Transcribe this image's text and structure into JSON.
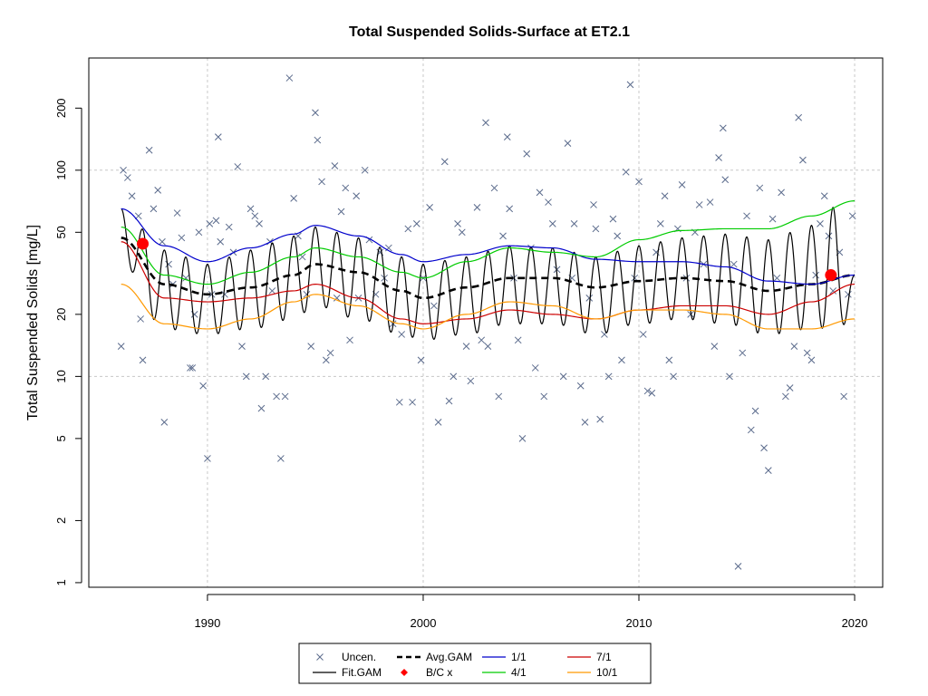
{
  "chart_data": {
    "type": "line",
    "title": "Total Suspended Solids-Surface at ET2.1",
    "xlabel": "",
    "ylabel": "Total Suspended Solids [mg/L]",
    "y_scale": "log",
    "xlim": [
      1984.5,
      2021.3
    ],
    "ylim": [
      0.95,
      350
    ],
    "x_ticks": [
      1990,
      2000,
      2010,
      2020
    ],
    "y_ticks": [
      1,
      2,
      5,
      10,
      20,
      50,
      100,
      200
    ],
    "grid": true,
    "legend_position": "bottom",
    "colors": {
      "points": "#5b6b8c",
      "fit": "#000000",
      "avg": "#000000",
      "bc": "#ff0000",
      "p1_1": "#0000cc",
      "p4_1": "#00cc00",
      "p7_1": "#cc0000",
      "p10_1": "#ff9900",
      "grid": "#c8c8c8"
    },
    "legend": [
      {
        "key": "points",
        "label": "Uncen."
      },
      {
        "key": "avg",
        "label": "Avg.GAM"
      },
      {
        "key": "p1_1",
        "label": "1/1"
      },
      {
        "key": "p7_1",
        "label": "7/1"
      },
      {
        "key": "fit",
        "label": "Fit.GAM"
      },
      {
        "key": "bc",
        "label": "B/C x"
      },
      {
        "key": "p4_1",
        "label": "4/1"
      },
      {
        "key": "p10_1",
        "label": "10/1"
      }
    ],
    "series": [
      {
        "name": "Avg.GAM",
        "x": [
          1986,
          1988,
          1990,
          1992,
          1994,
          1995,
          1997,
          1999,
          2000,
          2002,
          2004,
          2006,
          2008,
          2010,
          2012,
          2014,
          2016,
          2018,
          2020
        ],
        "y": [
          47,
          28,
          25,
          27,
          31,
          35,
          32,
          26,
          24,
          27,
          30,
          30,
          27,
          29,
          30,
          29,
          26,
          28,
          31
        ]
      },
      {
        "name": "1/1",
        "x": [
          1986,
          1988,
          1990,
          1992,
          1994,
          1995,
          1997,
          1999,
          2000,
          2002,
          2004,
          2006,
          2008,
          2010,
          2012,
          2014,
          2016,
          2018,
          2020
        ],
        "y": [
          65,
          43,
          36,
          42,
          49,
          54,
          48,
          39,
          36,
          39,
          43,
          42,
          37,
          36,
          36,
          34,
          29,
          28,
          31
        ]
      },
      {
        "name": "4/1",
        "x": [
          1986,
          1988,
          1990,
          1992,
          1994,
          1995,
          1997,
          1999,
          2000,
          2002,
          2004,
          2006,
          2008,
          2010,
          2012,
          2014,
          2016,
          2018,
          2020
        ],
        "y": [
          53,
          31,
          28,
          32,
          38,
          42,
          38,
          32,
          30,
          36,
          42,
          40,
          38,
          46,
          51,
          52,
          52,
          60,
          71
        ]
      },
      {
        "name": "7/1",
        "x": [
          1986,
          1988,
          1990,
          1992,
          1994,
          1995,
          1997,
          1999,
          2000,
          2002,
          2004,
          2006,
          2008,
          2010,
          2012,
          2014,
          2016,
          2018,
          2020
        ],
        "y": [
          45,
          24,
          23,
          24,
          26,
          28,
          24,
          19,
          18,
          19,
          21,
          20,
          19,
          21,
          22,
          22,
          20,
          23,
          28
        ]
      },
      {
        "name": "10/1",
        "x": [
          1986,
          1988,
          1990,
          1992,
          1994,
          1995,
          1997,
          1999,
          2000,
          2002,
          2004,
          2006,
          2008,
          2010,
          2012,
          2014,
          2016,
          2018,
          2020
        ],
        "y": [
          28,
          18,
          17,
          19,
          23,
          25,
          22,
          18,
          17,
          20,
          23,
          22,
          19,
          21,
          21,
          20,
          17,
          17,
          19
        ]
      }
    ],
    "fit_gam": {
      "name": "Fit.GAM",
      "x_start": 1986,
      "x_end": 2020,
      "period_years": 1,
      "upper_x": [
        1986,
        1988,
        1990,
        1992,
        1994,
        1995,
        1997,
        1999,
        2000,
        2002,
        2004,
        2006,
        2008,
        2010,
        2012,
        2014,
        2016,
        2018,
        2019,
        2020
      ],
      "upper_y": [
        65,
        41,
        35,
        41,
        48,
        53,
        47,
        38,
        35,
        38,
        43,
        42,
        38,
        43,
        47,
        49,
        46,
        54,
        66,
        31
      ],
      "lower_x": [
        1986,
        1988,
        1990,
        1992,
        1994,
        1995,
        1997,
        1999,
        2000,
        2002,
        2004,
        2006,
        2008,
        2010,
        2012,
        2014,
        2016,
        2018,
        2020
      ],
      "lower_y": [
        36,
        17,
        16,
        17,
        19,
        22,
        19,
        16,
        15,
        16,
        18,
        18,
        16,
        18,
        19,
        18,
        16,
        17,
        18
      ]
    },
    "bc_points": [
      {
        "x": 1987.0,
        "y": 44
      },
      {
        "x": 2018.9,
        "y": 31
      }
    ],
    "uncen_points": [
      [
        1986.0,
        14
      ],
      [
        1986.1,
        100
      ],
      [
        1986.3,
        92
      ],
      [
        1986.5,
        75
      ],
      [
        1986.8,
        60
      ],
      [
        1986.9,
        19
      ],
      [
        1987.0,
        12
      ],
      [
        1987.3,
        125
      ],
      [
        1987.5,
        65
      ],
      [
        1987.7,
        80
      ],
      [
        1987.9,
        45
      ],
      [
        1988.0,
        6
      ],
      [
        1988.2,
        35
      ],
      [
        1988.4,
        28
      ],
      [
        1988.6,
        62
      ],
      [
        1988.8,
        47
      ],
      [
        1989.0,
        30
      ],
      [
        1989.2,
        11
      ],
      [
        1989.3,
        11
      ],
      [
        1989.4,
        20
      ],
      [
        1989.6,
        50
      ],
      [
        1989.8,
        9
      ],
      [
        1990.0,
        4
      ],
      [
        1990.1,
        55
      ],
      [
        1990.2,
        25
      ],
      [
        1990.4,
        57
      ],
      [
        1990.5,
        145
      ],
      [
        1990.6,
        45
      ],
      [
        1990.8,
        25
      ],
      [
        1991.0,
        53
      ],
      [
        1991.2,
        40
      ],
      [
        1991.4,
        104
      ],
      [
        1991.6,
        14
      ],
      [
        1991.8,
        10
      ],
      [
        1992.0,
        65
      ],
      [
        1992.2,
        60
      ],
      [
        1992.4,
        55
      ],
      [
        1992.5,
        7
      ],
      [
        1992.7,
        10
      ],
      [
        1992.9,
        45
      ],
      [
        1993.0,
        26
      ],
      [
        1993.2,
        8
      ],
      [
        1993.4,
        4
      ],
      [
        1993.6,
        8
      ],
      [
        1993.8,
        280
      ],
      [
        1994.0,
        73
      ],
      [
        1994.2,
        48
      ],
      [
        1994.4,
        38
      ],
      [
        1994.6,
        25
      ],
      [
        1994.8,
        14
      ],
      [
        1995.0,
        190
      ],
      [
        1995.1,
        140
      ],
      [
        1995.3,
        88
      ],
      [
        1995.5,
        12
      ],
      [
        1995.7,
        13
      ],
      [
        1995.9,
        105
      ],
      [
        1996.0,
        24
      ],
      [
        1996.2,
        63
      ],
      [
        1996.4,
        82
      ],
      [
        1996.6,
        15
      ],
      [
        1996.9,
        75
      ],
      [
        1997.0,
        24
      ],
      [
        1997.3,
        100
      ],
      [
        1997.5,
        46
      ],
      [
        1997.8,
        25
      ],
      [
        1998.0,
        40
      ],
      [
        1998.2,
        30
      ],
      [
        1998.4,
        42
      ],
      [
        1998.6,
        18
      ],
      [
        1998.9,
        7.5
      ],
      [
        1999.0,
        16
      ],
      [
        1999.3,
        52
      ],
      [
        1999.5,
        7.5
      ],
      [
        1999.7,
        55
      ],
      [
        1999.9,
        12
      ],
      [
        2000.0,
        30
      ],
      [
        2000.3,
        66
      ],
      [
        2000.5,
        22
      ],
      [
        2000.7,
        6
      ],
      [
        2001.0,
        110
      ],
      [
        2001.2,
        7.6
      ],
      [
        2001.4,
        10
      ],
      [
        2001.6,
        55
      ],
      [
        2001.8,
        50
      ],
      [
        2002.0,
        14
      ],
      [
        2002.2,
        9.5
      ],
      [
        2002.5,
        66
      ],
      [
        2002.7,
        15
      ],
      [
        2002.9,
        170
      ],
      [
        2003.0,
        14
      ],
      [
        2003.3,
        82
      ],
      [
        2003.5,
        8
      ],
      [
        2003.7,
        48
      ],
      [
        2003.9,
        145
      ],
      [
        2004.0,
        65
      ],
      [
        2004.2,
        30
      ],
      [
        2004.4,
        15
      ],
      [
        2004.6,
        5
      ],
      [
        2004.8,
        120
      ],
      [
        2005.0,
        42
      ],
      [
        2005.2,
        11
      ],
      [
        2005.4,
        78
      ],
      [
        2005.6,
        8
      ],
      [
        2005.8,
        70
      ],
      [
        2006.0,
        55
      ],
      [
        2006.2,
        33
      ],
      [
        2006.5,
        10
      ],
      [
        2006.7,
        135
      ],
      [
        2006.9,
        30
      ],
      [
        2007.0,
        55
      ],
      [
        2007.3,
        9
      ],
      [
        2007.5,
        6
      ],
      [
        2007.7,
        24
      ],
      [
        2007.9,
        68
      ],
      [
        2008.0,
        52
      ],
      [
        2008.2,
        6.2
      ],
      [
        2008.4,
        16
      ],
      [
        2008.6,
        10
      ],
      [
        2008.8,
        58
      ],
      [
        2009.0,
        48
      ],
      [
        2009.2,
        12
      ],
      [
        2009.4,
        98
      ],
      [
        2009.6,
        260
      ],
      [
        2009.8,
        30
      ],
      [
        2010.0,
        88
      ],
      [
        2010.2,
        16
      ],
      [
        2010.4,
        8.5
      ],
      [
        2010.6,
        8.3
      ],
      [
        2010.8,
        40
      ],
      [
        2011.0,
        55
      ],
      [
        2011.2,
        75
      ],
      [
        2011.4,
        12
      ],
      [
        2011.6,
        10
      ],
      [
        2011.8,
        52
      ],
      [
        2012.0,
        85
      ],
      [
        2012.2,
        30
      ],
      [
        2012.4,
        20
      ],
      [
        2012.6,
        50
      ],
      [
        2012.8,
        68
      ],
      [
        2013.0,
        35
      ],
      [
        2013.3,
        70
      ],
      [
        2013.5,
        14
      ],
      [
        2013.7,
        115
      ],
      [
        2013.9,
        160
      ],
      [
        2014.0,
        90
      ],
      [
        2014.2,
        10
      ],
      [
        2014.4,
        35
      ],
      [
        2014.6,
        1.2
      ],
      [
        2014.8,
        13
      ],
      [
        2015.0,
        60
      ],
      [
        2015.2,
        5.5
      ],
      [
        2015.4,
        6.8
      ],
      [
        2015.6,
        82
      ],
      [
        2015.8,
        4.5
      ],
      [
        2016.0,
        3.5
      ],
      [
        2016.2,
        58
      ],
      [
        2016.4,
        30
      ],
      [
        2016.6,
        78
      ],
      [
        2016.8,
        8
      ],
      [
        2017.0,
        8.8
      ],
      [
        2017.2,
        14
      ],
      [
        2017.4,
        180
      ],
      [
        2017.6,
        112
      ],
      [
        2017.8,
        13
      ],
      [
        2018.0,
        12
      ],
      [
        2018.2,
        31
      ],
      [
        2018.4,
        55
      ],
      [
        2018.6,
        75
      ],
      [
        2018.8,
        48
      ],
      [
        2019.0,
        26
      ],
      [
        2019.3,
        40
      ],
      [
        2019.5,
        8
      ],
      [
        2019.7,
        25
      ],
      [
        2019.9,
        60
      ]
    ]
  }
}
